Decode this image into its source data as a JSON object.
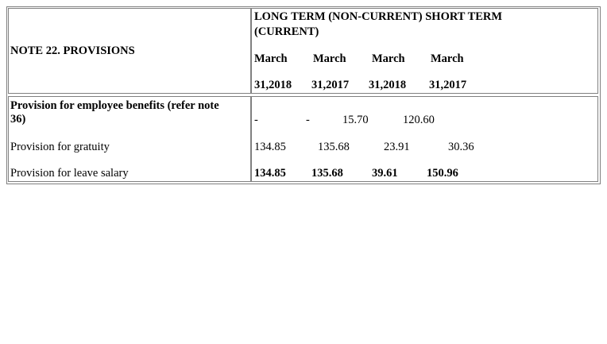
{
  "note_title": "NOTE 22. PROVISIONS",
  "header": {
    "group_line1": "LONG TERM (NON-CURRENT)   SHORT TERM",
    "group_line2": "(CURRENT)",
    "months": [
      "March",
      "March",
      "March",
      "March"
    ],
    "dates": [
      "31,2018",
      "31,2017",
      "31,2018",
      "31,2017"
    ]
  },
  "rows": [
    {
      "label_line1": "Provision for employee benefits (refer note",
      "label_line2": "36)",
      "values": [
        "-",
        "-",
        "15.70",
        "120.60"
      ]
    },
    {
      "label": "Provision for gratuity",
      "values": [
        "134.85",
        "135.68",
        "23.91",
        "30.36"
      ]
    },
    {
      "label": "Provision for leave salary",
      "values": [
        "134.85",
        "135.68",
        "39.61",
        "150.96"
      ]
    }
  ]
}
